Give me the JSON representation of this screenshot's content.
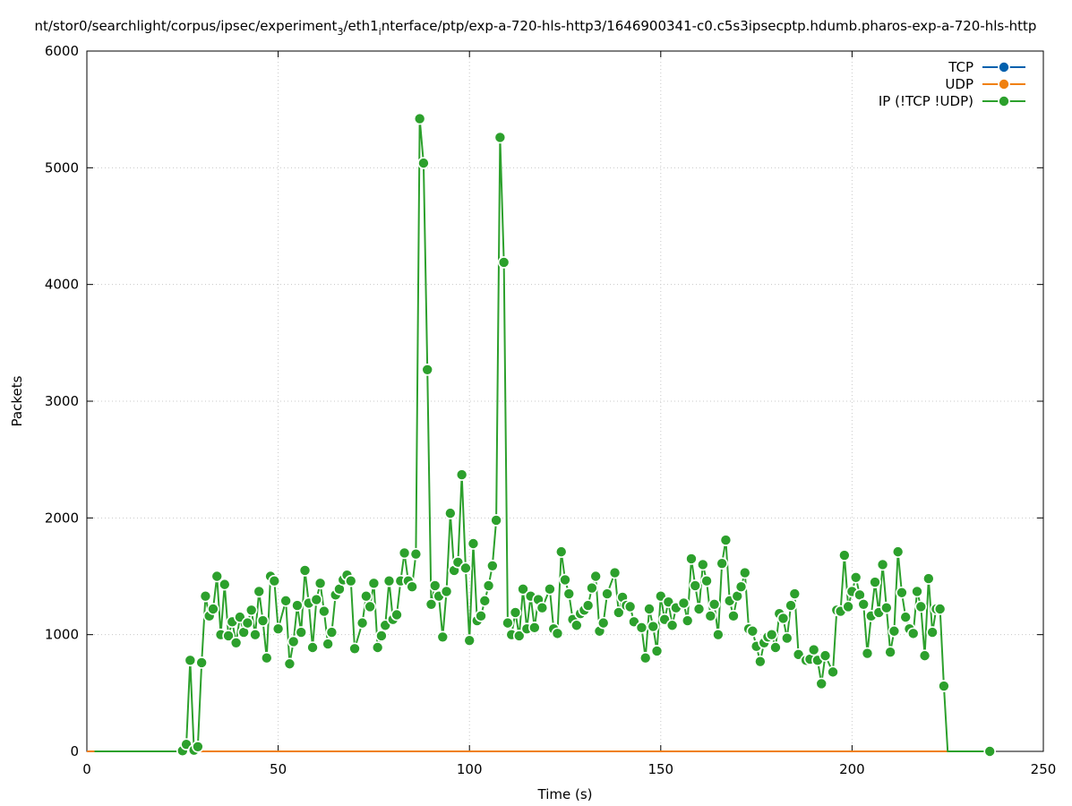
{
  "chart_data": {
    "type": "line",
    "title": "nt/stor0/searchlight/corpus/ipsec/experiment_3/eth1_interface/ptp/exp-a-720-hls-http3/1646900341-c0.c5s3ipsecptp.hdumb.pharos-exp-a-720-hls-http",
    "title_parts": {
      "a": "nt/stor0/searchlight/corpus/ipsec/experiment",
      "sub1": "3",
      "b": "/eth1",
      "sub2": "i",
      "c": "nterface/ptp/exp-a-720-hls-http3/1646900341-c0.c5s3ipsecptp.hdumb.pharos-exp-a-720-hls-http"
    },
    "xlabel": "Time (s)",
    "ylabel": "Packets",
    "xlim": [
      0,
      250
    ],
    "ylim": [
      0,
      6000
    ],
    "x_ticks": [
      0,
      50,
      100,
      150,
      200,
      250
    ],
    "y_ticks": [
      0,
      1000,
      2000,
      3000,
      4000,
      5000,
      6000
    ],
    "grid": true,
    "legend_position": "top-right",
    "colors": {
      "tcp": "#0060ad",
      "udp": "#f0800f",
      "ip": "#2ca02c"
    },
    "series": [
      {
        "name": "TCP",
        "points": [
          [
            0,
            0
          ],
          [
            236,
            0
          ]
        ]
      },
      {
        "name": "UDP",
        "points": [
          [
            0,
            0
          ],
          [
            236,
            0
          ]
        ]
      },
      {
        "name": "IP (!TCP  !UDP)",
        "points": [
          [
            2,
            0
          ],
          [
            4,
            0
          ],
          [
            6,
            0
          ],
          [
            8,
            0
          ],
          [
            10,
            0
          ],
          [
            12,
            0
          ],
          [
            14,
            0
          ],
          [
            16,
            0
          ],
          [
            18,
            0
          ],
          [
            20,
            0
          ],
          [
            22,
            0
          ],
          [
            24,
            0
          ],
          [
            25,
            5
          ],
          [
            26,
            60
          ],
          [
            27,
            780
          ],
          [
            28,
            10
          ],
          [
            29,
            40
          ],
          [
            30,
            760
          ],
          [
            31,
            1330
          ],
          [
            32,
            1160
          ],
          [
            33,
            1220
          ],
          [
            34,
            1500
          ],
          [
            35,
            1000
          ],
          [
            36,
            1430
          ],
          [
            37,
            990
          ],
          [
            38,
            1110
          ],
          [
            39,
            930
          ],
          [
            40,
            1150
          ],
          [
            41,
            1020
          ],
          [
            42,
            1100
          ],
          [
            43,
            1210
          ],
          [
            44,
            1000
          ],
          [
            45,
            1370
          ],
          [
            46,
            1120
          ],
          [
            47,
            800
          ],
          [
            48,
            1500
          ],
          [
            49,
            1460
          ],
          [
            50,
            1050
          ],
          [
            52,
            1290
          ],
          [
            53,
            750
          ],
          [
            54,
            940
          ],
          [
            55,
            1250
          ],
          [
            56,
            1020
          ],
          [
            57,
            1550
          ],
          [
            58,
            1270
          ],
          [
            59,
            890
          ],
          [
            60,
            1300
          ],
          [
            61,
            1440
          ],
          [
            62,
            1200
          ],
          [
            63,
            920
          ],
          [
            64,
            1020
          ],
          [
            65,
            1340
          ],
          [
            66,
            1390
          ],
          [
            67,
            1470
          ],
          [
            68,
            1510
          ],
          [
            69,
            1460
          ],
          [
            70,
            880
          ],
          [
            72,
            1100
          ],
          [
            73,
            1330
          ],
          [
            74,
            1240
          ],
          [
            75,
            1440
          ],
          [
            76,
            890
          ],
          [
            77,
            990
          ],
          [
            78,
            1080
          ],
          [
            79,
            1460
          ],
          [
            80,
            1130
          ],
          [
            81,
            1170
          ],
          [
            82,
            1460
          ],
          [
            83,
            1700
          ],
          [
            84,
            1460
          ],
          [
            85,
            1410
          ],
          [
            86,
            1690
          ],
          [
            87,
            5420
          ],
          [
            88,
            5040
          ],
          [
            89,
            3270
          ],
          [
            90,
            1260
          ],
          [
            91,
            1420
          ],
          [
            92,
            1330
          ],
          [
            93,
            980
          ],
          [
            94,
            1370
          ],
          [
            95,
            2040
          ],
          [
            96,
            1550
          ],
          [
            97,
            1620
          ],
          [
            98,
            2370
          ],
          [
            99,
            1570
          ],
          [
            100,
            950
          ],
          [
            101,
            1780
          ],
          [
            102,
            1120
          ],
          [
            103,
            1160
          ],
          [
            104,
            1290
          ],
          [
            105,
            1420
          ],
          [
            106,
            1590
          ],
          [
            107,
            1980
          ],
          [
            108,
            5260
          ],
          [
            109,
            4190
          ],
          [
            110,
            1100
          ],
          [
            111,
            1000
          ],
          [
            112,
            1190
          ],
          [
            113,
            990
          ],
          [
            114,
            1390
          ],
          [
            115,
            1050
          ],
          [
            116,
            1330
          ],
          [
            117,
            1060
          ],
          [
            118,
            1300
          ],
          [
            119,
            1230
          ],
          [
            121,
            1390
          ],
          [
            122,
            1050
          ],
          [
            123,
            1010
          ],
          [
            124,
            1710
          ],
          [
            125,
            1470
          ],
          [
            126,
            1350
          ],
          [
            127,
            1130
          ],
          [
            128,
            1080
          ],
          [
            129,
            1180
          ],
          [
            130,
            1210
          ],
          [
            131,
            1250
          ],
          [
            132,
            1400
          ],
          [
            133,
            1500
          ],
          [
            134,
            1030
          ],
          [
            135,
            1100
          ],
          [
            136,
            1350
          ],
          [
            138,
            1530
          ],
          [
            139,
            1190
          ],
          [
            140,
            1320
          ],
          [
            141,
            1250
          ],
          [
            142,
            1240
          ],
          [
            143,
            1110
          ],
          [
            145,
            1060
          ],
          [
            146,
            800
          ],
          [
            147,
            1220
          ],
          [
            148,
            1070
          ],
          [
            149,
            860
          ],
          [
            150,
            1330
          ],
          [
            151,
            1130
          ],
          [
            152,
            1280
          ],
          [
            153,
            1080
          ],
          [
            154,
            1230
          ],
          [
            156,
            1270
          ],
          [
            157,
            1120
          ],
          [
            158,
            1650
          ],
          [
            159,
            1420
          ],
          [
            160,
            1220
          ],
          [
            161,
            1600
          ],
          [
            162,
            1460
          ],
          [
            163,
            1160
          ],
          [
            164,
            1260
          ],
          [
            165,
            1000
          ],
          [
            166,
            1610
          ],
          [
            167,
            1810
          ],
          [
            168,
            1290
          ],
          [
            169,
            1160
          ],
          [
            170,
            1330
          ],
          [
            171,
            1410
          ],
          [
            172,
            1530
          ],
          [
            173,
            1050
          ],
          [
            174,
            1030
          ],
          [
            175,
            900
          ],
          [
            176,
            770
          ],
          [
            177,
            930
          ],
          [
            178,
            980
          ],
          [
            179,
            1000
          ],
          [
            180,
            890
          ],
          [
            181,
            1180
          ],
          [
            182,
            1140
          ],
          [
            183,
            970
          ],
          [
            184,
            1250
          ],
          [
            185,
            1350
          ],
          [
            186,
            830
          ],
          [
            188,
            780
          ],
          [
            189,
            790
          ],
          [
            190,
            870
          ],
          [
            191,
            780
          ],
          [
            192,
            580
          ],
          [
            193,
            820
          ],
          [
            195,
            680
          ],
          [
            196,
            1210
          ],
          [
            197,
            1200
          ],
          [
            198,
            1680
          ],
          [
            199,
            1240
          ],
          [
            200,
            1370
          ],
          [
            201,
            1490
          ],
          [
            202,
            1340
          ],
          [
            203,
            1260
          ],
          [
            204,
            840
          ],
          [
            205,
            1160
          ],
          [
            206,
            1450
          ],
          [
            207,
            1190
          ],
          [
            208,
            1600
          ],
          [
            209,
            1230
          ],
          [
            210,
            850
          ],
          [
            211,
            1030
          ],
          [
            212,
            1710
          ],
          [
            213,
            1360
          ],
          [
            214,
            1150
          ],
          [
            215,
            1050
          ],
          [
            216,
            1010
          ],
          [
            217,
            1370
          ],
          [
            218,
            1240
          ],
          [
            219,
            820
          ],
          [
            220,
            1480
          ],
          [
            221,
            1020
          ],
          [
            222,
            1220
          ],
          [
            223,
            1220
          ],
          [
            224,
            560
          ],
          [
            225,
            0
          ],
          [
            236,
            0
          ]
        ]
      }
    ]
  }
}
